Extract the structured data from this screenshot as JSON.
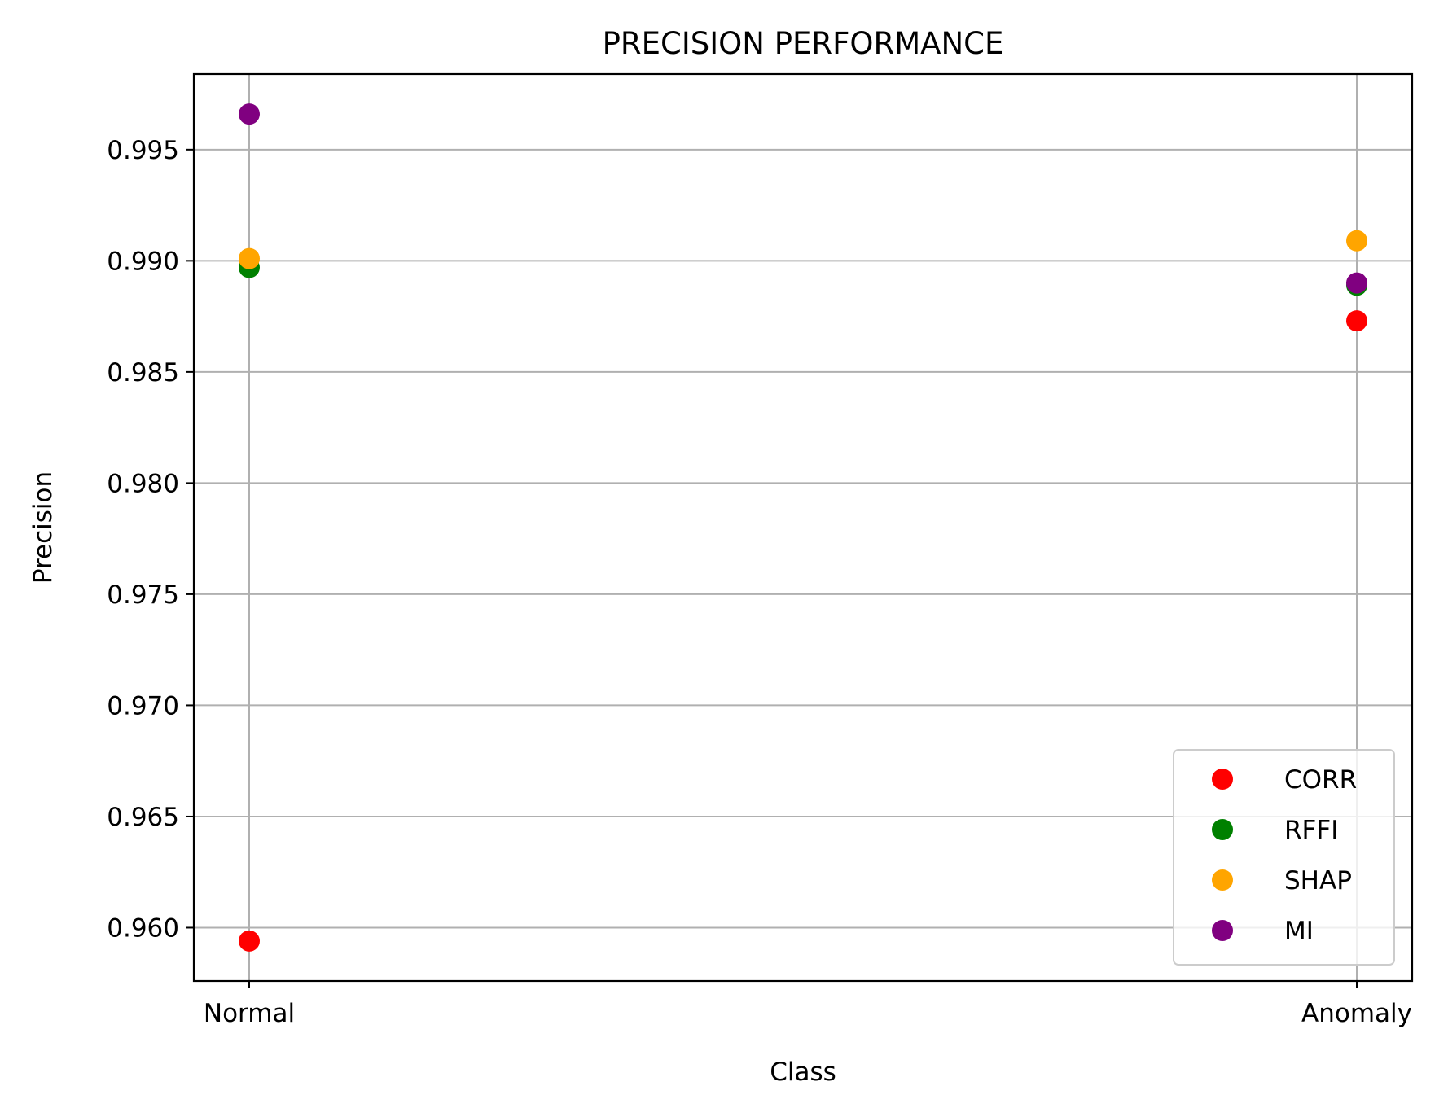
{
  "chart_data": {
    "type": "scatter",
    "title": "PRECISION PERFORMANCE",
    "xlabel": "Class",
    "ylabel": "Precision",
    "categories": [
      "Normal",
      "Anomaly"
    ],
    "ylim": [
      0.9576,
      0.9984
    ],
    "yticks": [
      "0.960",
      "0.965",
      "0.970",
      "0.975",
      "0.980",
      "0.985",
      "0.990",
      "0.995"
    ],
    "grid": true,
    "legend_position": "lower right",
    "series": [
      {
        "name": "CORR",
        "color": "#ff0000",
        "values": [
          0.9594,
          0.9873
        ]
      },
      {
        "name": "RFFI",
        "color": "#008000",
        "values": [
          0.9897,
          0.9889
        ]
      },
      {
        "name": "SHAP",
        "color": "#ffa500",
        "values": [
          0.9901,
          0.9909
        ]
      },
      {
        "name": "MI",
        "color": "#800080",
        "values": [
          0.9966,
          0.989
        ]
      }
    ]
  }
}
